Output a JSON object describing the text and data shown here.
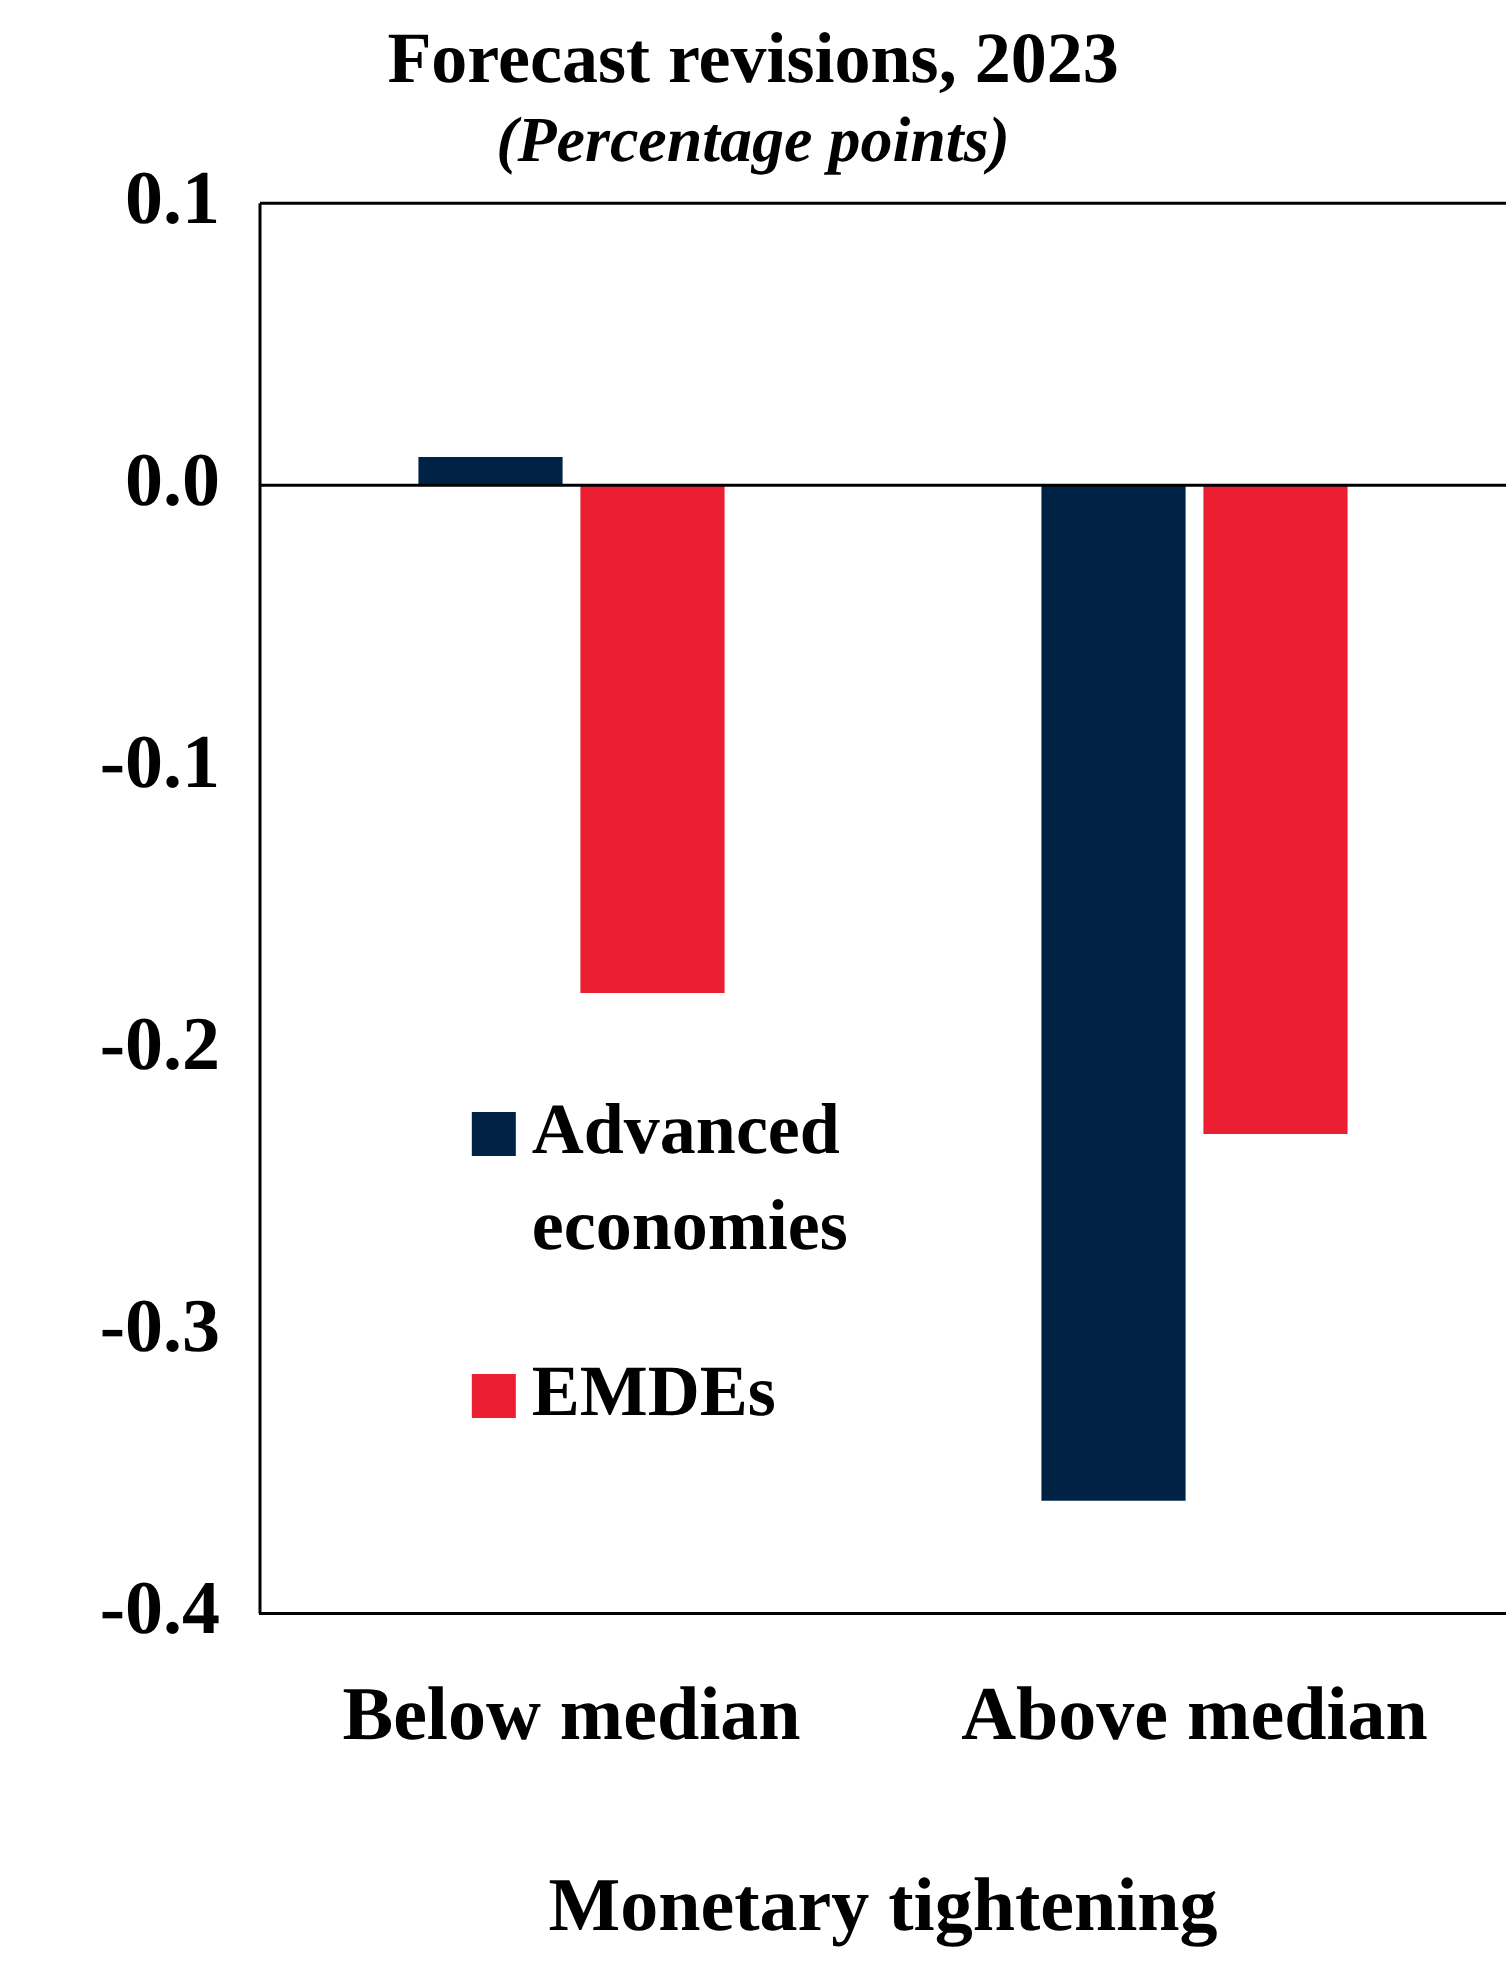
{
  "chart_data": {
    "type": "bar",
    "title": "Forecast revisions, 2023",
    "subtitle": "(Percentage points)",
    "xlabel": "Monetary tightening",
    "categories": [
      "Below median",
      "Above median"
    ],
    "series": [
      {
        "name": "Advanced economies",
        "color": "#002345",
        "values": [
          0.01,
          -0.36
        ]
      },
      {
        "name": "EMDEs",
        "color": "#eb1e32",
        "values": [
          -0.18,
          -0.23
        ]
      }
    ],
    "ylim": [
      -0.4,
      0.1
    ],
    "yticks": [
      0.1,
      {
        "value": 0,
        "label": "0.0"
      },
      -0.1,
      -0.2,
      -0.3,
      -0.4
    ],
    "grid": false,
    "ref_lines": [
      {
        "axis": "y",
        "value": 0,
        "color": "#000000"
      }
    ],
    "legend": "bottom left"
  }
}
